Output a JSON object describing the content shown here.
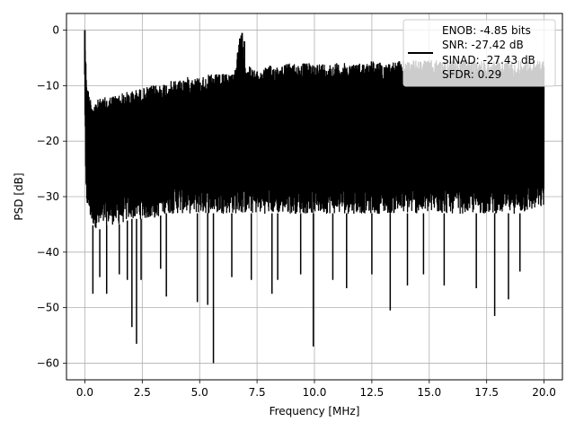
{
  "chart_data": {
    "type": "line",
    "xlabel": "Frequency [MHz]",
    "ylabel": "PSD [dB]",
    "xlim": [
      -0.8,
      20.8
    ],
    "ylim": [
      -63,
      3
    ],
    "xticks": [
      0.0,
      2.5,
      5.0,
      7.5,
      10.0,
      12.5,
      15.0,
      17.5,
      20.0
    ],
    "xtick_labels": [
      "0.0",
      "2.5",
      "5.0",
      "7.5",
      "10.0",
      "12.5",
      "15.0",
      "17.5",
      "20.0"
    ],
    "yticks": [
      0,
      -10,
      -20,
      -30,
      -40,
      -50,
      -60
    ],
    "ytick_labels": [
      "0",
      "−10",
      "−20",
      "−30",
      "−40",
      "−50",
      "−60"
    ],
    "grid": true,
    "legend_position": "top-right",
    "line_color": "#000000",
    "series": [
      {
        "name": "ENOB: -4.85 bits\nSNR: -27.42 dB\nSINAD: -27.43 dB\nSFDR: 0.29",
        "envelope": {
          "x": [
            0.0,
            0.05,
            0.1,
            0.3,
            0.6,
            1.0,
            1.5,
            2.0,
            2.5,
            3.0,
            3.5,
            4.0,
            4.5,
            5.0,
            5.5,
            6.0,
            6.5,
            6.8,
            6.9,
            7.0,
            7.5,
            8.0,
            9.0,
            10.0,
            11.0,
            12.0,
            12.5,
            13.0,
            14.0,
            15.0,
            16.0,
            17.0,
            18.0,
            19.0,
            20.0
          ],
          "upper": [
            0.0,
            -6,
            -10,
            -13,
            -12.5,
            -12,
            -11.5,
            -11,
            -10.5,
            -10,
            -9.5,
            -9,
            -8.5,
            -8.5,
            -8,
            -8,
            -7.5,
            -0.5,
            -2,
            -6,
            -7.5,
            -6.5,
            -6,
            -6,
            -6,
            -6,
            -5.5,
            -6,
            -5.5,
            -5.5,
            -5.5,
            -5.5,
            -5.5,
            -5.5,
            -5.5
          ],
          "lower": [
            -14,
            -32,
            -32,
            -35,
            -36,
            -35,
            -35,
            -34,
            -34,
            -34,
            -33,
            -33,
            -33,
            -33,
            -33,
            -33,
            -33,
            -33,
            -33,
            -33,
            -33,
            -33,
            -33,
            -33,
            -33,
            -33,
            -33,
            -33,
            -33,
            -33,
            -33,
            -33,
            -33,
            -33,
            -32
          ]
        },
        "dips": [
          {
            "x": 0.35,
            "y": -47.5
          },
          {
            "x": 0.65,
            "y": -44.5
          },
          {
            "x": 0.95,
            "y": -47.5
          },
          {
            "x": 1.5,
            "y": -44
          },
          {
            "x": 1.85,
            "y": -45
          },
          {
            "x": 2.05,
            "y": -53.5
          },
          {
            "x": 2.25,
            "y": -56.5
          },
          {
            "x": 2.45,
            "y": -45
          },
          {
            "x": 3.3,
            "y": -43
          },
          {
            "x": 3.55,
            "y": -48
          },
          {
            "x": 4.9,
            "y": -49
          },
          {
            "x": 5.35,
            "y": -49.5
          },
          {
            "x": 5.6,
            "y": -60
          },
          {
            "x": 6.4,
            "y": -44.5
          },
          {
            "x": 7.25,
            "y": -45
          },
          {
            "x": 8.15,
            "y": -47.5
          },
          {
            "x": 8.4,
            "y": -45
          },
          {
            "x": 9.4,
            "y": -44
          },
          {
            "x": 9.95,
            "y": -57
          },
          {
            "x": 10.8,
            "y": -45
          },
          {
            "x": 11.4,
            "y": -46.5
          },
          {
            "x": 12.5,
            "y": -44
          },
          {
            "x": 13.3,
            "y": -50.5
          },
          {
            "x": 14.05,
            "y": -46
          },
          {
            "x": 14.75,
            "y": -44
          },
          {
            "x": 15.65,
            "y": -46
          },
          {
            "x": 17.05,
            "y": -46.5
          },
          {
            "x": 17.85,
            "y": -51.5
          },
          {
            "x": 18.45,
            "y": -48.5
          },
          {
            "x": 18.95,
            "y": -43.5
          }
        ],
        "spikes": [
          {
            "x": 0.0,
            "y": 0.0
          },
          {
            "x": 6.85,
            "y": -0.5
          },
          {
            "x": 6.75,
            "y": -1.5
          },
          {
            "x": 6.95,
            "y": -2
          }
        ]
      }
    ],
    "legend": {
      "lines": [
        "ENOB: -4.85 bits",
        "SNR: -27.42 dB",
        "SINAD: -27.43 dB",
        "SFDR: 0.29"
      ]
    }
  }
}
